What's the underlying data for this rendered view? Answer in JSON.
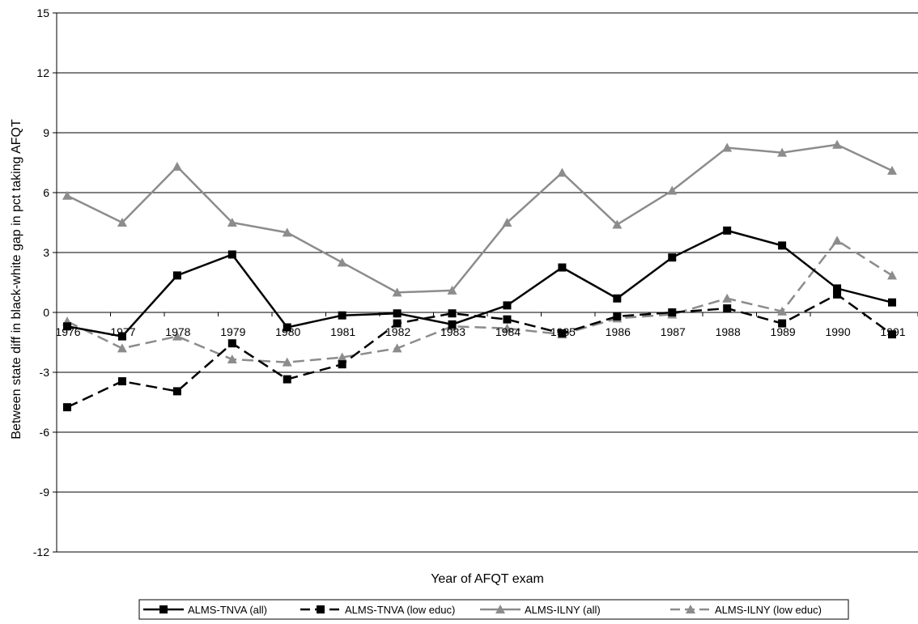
{
  "chart_data": {
    "type": "line",
    "xlabel": "Year of AFQT exam",
    "ylabel": "Between state diff in black-white gap in pct taking AFQT",
    "ylim": [
      -12,
      15
    ],
    "yticks": [
      "15",
      "12",
      "9",
      "6",
      "3",
      "0",
      "-3",
      "-6",
      "-9",
      "-12"
    ],
    "ytick_values": [
      15,
      12,
      9,
      6,
      3,
      0,
      -3,
      -6,
      -9,
      -12
    ],
    "categories": [
      "1976",
      "1977",
      "1978",
      "1979",
      "1980",
      "1981",
      "1982",
      "1983",
      "1984",
      "1985",
      "1986",
      "1987",
      "1988",
      "1989",
      "1990",
      "1991"
    ],
    "grid": "horizontal",
    "legend_position": "bottom",
    "series": [
      {
        "name": "ALMS-TNVA (all)",
        "color": "#000000",
        "marker": "square",
        "dash": "solid",
        "values": [
          -0.7,
          -1.2,
          1.85,
          2.9,
          -0.75,
          -0.15,
          -0.05,
          -0.6,
          0.35,
          2.25,
          0.7,
          2.75,
          4.1,
          3.35,
          1.2,
          0.5
        ]
      },
      {
        "name": "ALMS-TNVA (low educ)",
        "color": "#000000",
        "marker": "square",
        "dash": "dashed",
        "values": [
          -4.75,
          -3.45,
          -3.95,
          -1.55,
          -3.35,
          -2.6,
          -0.55,
          -0.05,
          -0.35,
          -1.05,
          -0.2,
          0.0,
          0.2,
          -0.55,
          0.9,
          -1.1
        ]
      },
      {
        "name": "ALMS-ILNY (all)",
        "color": "#8c8c8c",
        "marker": "triangle",
        "dash": "solid",
        "values": [
          5.85,
          4.5,
          7.3,
          4.5,
          4.0,
          2.5,
          1.0,
          1.1,
          4.5,
          7.0,
          4.4,
          6.1,
          8.25,
          8.0,
          8.4,
          7.1
        ]
      },
      {
        "name": "ALMS-ILNY (low educ)",
        "color": "#8c8c8c",
        "marker": "triangle",
        "dash": "dashed",
        "values": [
          -0.45,
          -1.8,
          -1.2,
          -2.35,
          -2.5,
          -2.25,
          -1.8,
          -0.7,
          -0.8,
          -1.1,
          -0.3,
          -0.1,
          0.7,
          0.05,
          3.6,
          1.85
        ]
      }
    ]
  }
}
